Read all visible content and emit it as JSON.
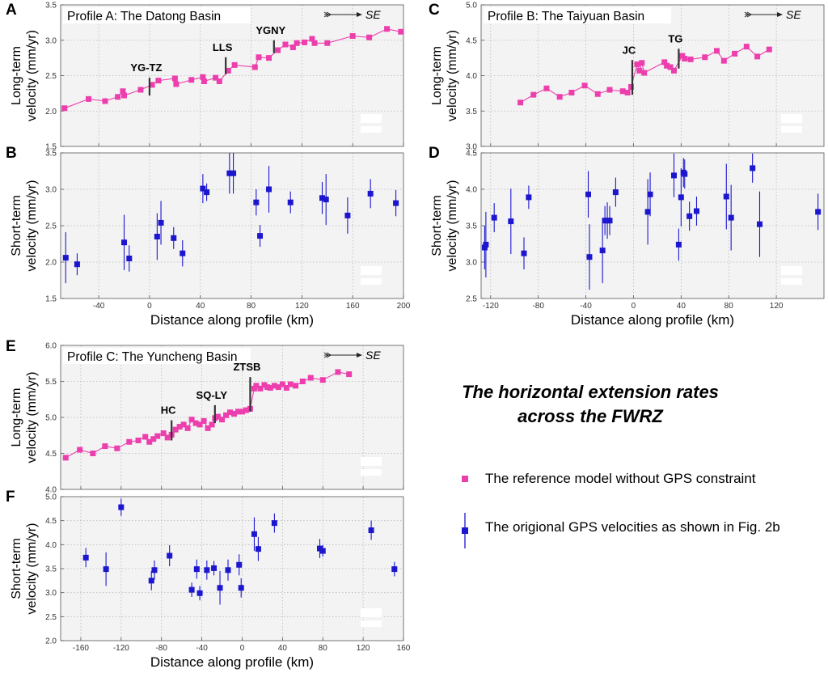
{
  "colors": {
    "reference": "#ec3fad",
    "gps": "#1c17cf",
    "panel_bg": "#f3f3f3",
    "axis": "#555555",
    "grid": "#b8b8b8"
  },
  "legend": {
    "title_line1": "The horizontal extension rates",
    "title_line2": "across the FWRZ",
    "reference_label": "The reference model without GPS constraint",
    "gps_label": "The origional GPS velocities as shown in Fig. 2b"
  },
  "panel_letters": {
    "A": "A",
    "B": "B",
    "C": "C",
    "D": "D",
    "E": "E",
    "F": "F"
  },
  "chart_data": [
    {
      "id": "A",
      "type": "line",
      "title": "Profile A: The Datong Basin",
      "direction": "SE",
      "ylabel": [
        "Long-term",
        "velocity (mm/yr)"
      ],
      "xlabel": "",
      "xlim": [
        -70,
        200
      ],
      "ylim": [
        1.5,
        3.5
      ],
      "xticks": [
        -40,
        0,
        40,
        80,
        120,
        160,
        200
      ],
      "yticks": [
        1.5,
        2.0,
        2.5,
        3.0,
        3.5
      ],
      "show_xtick_labels": false,
      "series": [
        {
          "name": "The reference model without GPS constraint",
          "x": [
            -67,
            -48,
            -35,
            -25,
            -21,
            -20,
            -7,
            2,
            7,
            20,
            21,
            33,
            42,
            43,
            52,
            55,
            62,
            67,
            83,
            86,
            94,
            101,
            107,
            113,
            116,
            122,
            128,
            130,
            140,
            160,
            173,
            187,
            198
          ],
          "y": [
            2.04,
            2.17,
            2.14,
            2.2,
            2.28,
            2.22,
            2.3,
            2.37,
            2.43,
            2.46,
            2.38,
            2.44,
            2.48,
            2.42,
            2.47,
            2.42,
            2.57,
            2.65,
            2.62,
            2.76,
            2.75,
            2.86,
            2.94,
            2.9,
            2.96,
            2.97,
            3.02,
            2.96,
            2.96,
            3.06,
            3.04,
            3.16,
            3.12
          ]
        }
      ],
      "markers": [
        {
          "label": "YG-TZ",
          "x": 0,
          "y0": 2.22,
          "y1": 2.47
        },
        {
          "label": "LLS",
          "x": 60,
          "y0": 2.52,
          "y1": 2.76
        },
        {
          "label": "YGNY",
          "x": 98,
          "y0": 2.82,
          "y1": 3.0
        }
      ]
    },
    {
      "id": "B",
      "type": "scatter",
      "title": "",
      "ylabel": [
        "Short-term",
        "velocity (mm/yr)"
      ],
      "xlabel": "Distance along profile (km)",
      "xlim": [
        -70,
        200
      ],
      "ylim": [
        1.5,
        3.5
      ],
      "xticks": [
        -40,
        0,
        40,
        80,
        120,
        160,
        200
      ],
      "yticks": [
        1.5,
        2.0,
        2.5,
        3.0,
        3.5
      ],
      "show_xtick_labels": true,
      "series": [
        {
          "name": "The origional GPS velocities as shown in Fig. 2b",
          "x": [
            -66,
            -57,
            -20,
            -16,
            6,
            9,
            19,
            26,
            42,
            45,
            63,
            66,
            84,
            87,
            94,
            111,
            136,
            139,
            156,
            174,
            194
          ],
          "y": [
            2.06,
            1.97,
            2.27,
            2.05,
            2.35,
            2.54,
            2.33,
            2.12,
            3.01,
            2.96,
            3.22,
            3.22,
            2.82,
            2.36,
            3.0,
            2.82,
            2.88,
            2.86,
            2.64,
            2.94,
            2.81
          ],
          "err": [
            0.35,
            0.15,
            0.38,
            0.18,
            0.32,
            0.3,
            0.15,
            0.18,
            0.2,
            0.12,
            0.28,
            0.28,
            0.18,
            0.15,
            0.32,
            0.15,
            0.22,
            0.35,
            0.25,
            0.2,
            0.18
          ]
        }
      ]
    },
    {
      "id": "C",
      "type": "line",
      "title": "Profile B: The Taiyuan Basin",
      "direction": "SE",
      "ylabel": [
        "Long-term",
        "velocity (mm/yr)"
      ],
      "xlabel": "",
      "xlim": [
        -128,
        160
      ],
      "ylim": [
        3.0,
        5.0
      ],
      "xticks": [
        -120,
        -80,
        -40,
        0,
        40,
        80,
        120
      ],
      "yticks": [
        3.0,
        3.5,
        4.0,
        4.5,
        5.0
      ],
      "show_xtick_labels": false,
      "series": [
        {
          "name": "The reference model without GPS constraint",
          "x": [
            -95,
            -84,
            -73,
            -62,
            -52,
            -41,
            -30,
            -20,
            -9,
            -5,
            -2,
            3,
            5,
            7,
            9,
            26,
            28,
            31,
            34,
            41,
            43,
            48,
            60,
            70,
            76,
            85,
            95,
            104,
            114
          ],
          "y": [
            3.62,
            3.73,
            3.82,
            3.7,
            3.76,
            3.86,
            3.74,
            3.8,
            3.78,
            3.76,
            3.84,
            4.16,
            4.07,
            4.18,
            4.04,
            4.19,
            4.14,
            4.12,
            4.07,
            4.28,
            4.24,
            4.23,
            4.26,
            4.35,
            4.21,
            4.31,
            4.41,
            4.27,
            4.37
          ]
        }
      ],
      "markers": [
        {
          "label": "JC",
          "x": -1,
          "y0": 3.73,
          "y1": 4.22
        },
        {
          "label": "TG",
          "x": 38,
          "y0": 4.1,
          "y1": 4.38
        }
      ]
    },
    {
      "id": "D",
      "type": "scatter",
      "title": "",
      "ylabel": [
        "Short-term",
        "velocity (mm/yr)"
      ],
      "xlabel": "Distance along profile (km)",
      "xlim": [
        -128,
        160
      ],
      "ylim": [
        2.5,
        4.5
      ],
      "xticks": [
        -120,
        -80,
        -40,
        0,
        40,
        80,
        120
      ],
      "yticks": [
        2.5,
        3.0,
        3.5,
        4.0,
        4.5
      ],
      "show_xtick_labels": true,
      "series": [
        {
          "name": "The origional GPS velocities as shown in Fig. 2b",
          "x": [
            -125,
            -124,
            -117,
            -103,
            -92,
            -88,
            -38,
            -37,
            -26,
            -24,
            -22,
            -20,
            -15,
            12,
            14,
            34,
            38,
            40,
            42,
            43,
            47,
            53,
            78,
            82,
            100,
            106,
            155
          ],
          "y": [
            3.2,
            3.24,
            3.61,
            3.56,
            3.12,
            3.89,
            3.93,
            3.07,
            3.16,
            3.57,
            3.57,
            3.57,
            3.96,
            3.69,
            3.93,
            4.19,
            3.24,
            3.89,
            4.23,
            4.21,
            3.63,
            3.7,
            3.9,
            3.61,
            4.29,
            3.52,
            3.69
          ],
          "err": [
            0.3,
            0.45,
            0.2,
            0.45,
            0.22,
            0.16,
            0.32,
            0.45,
            0.45,
            0.2,
            0.25,
            0.2,
            0.2,
            0.45,
            0.3,
            0.3,
            0.22,
            0.4,
            0.2,
            0.2,
            0.2,
            0.2,
            0.45,
            0.45,
            0.2,
            0.45,
            0.25
          ]
        }
      ]
    },
    {
      "id": "E",
      "type": "line",
      "title": "Profile C: The Yuncheng Basin",
      "direction": "SE",
      "ylabel": [
        "Long-term",
        "velocity (mm/yr)"
      ],
      "xlabel": "",
      "xlim": [
        -180,
        160
      ],
      "ylim": [
        4.0,
        6.0
      ],
      "xticks": [
        -160,
        -120,
        -80,
        -40,
        0,
        40,
        80,
        120,
        160
      ],
      "yticks": [
        4.0,
        4.5,
        5.0,
        5.5,
        6.0
      ],
      "show_xtick_labels": false,
      "series": [
        {
          "name": "The reference model without GPS constraint",
          "x": [
            -175,
            -161,
            -148,
            -136,
            -124,
            -112,
            -103,
            -96,
            -92,
            -88,
            -84,
            -78,
            -74,
            -70,
            -66,
            -62,
            -58,
            -54,
            -50,
            -46,
            -42,
            -38,
            -34,
            -30,
            -27,
            -24,
            -20,
            -16,
            -12,
            -8,
            -4,
            0,
            4,
            8,
            12,
            14,
            18,
            22,
            25,
            28,
            32,
            36,
            40,
            44,
            48,
            53,
            60,
            68,
            80,
            95,
            106
          ],
          "y": [
            4.44,
            4.55,
            4.5,
            4.6,
            4.57,
            4.66,
            4.68,
            4.73,
            4.66,
            4.7,
            4.74,
            4.78,
            4.72,
            4.76,
            4.83,
            4.87,
            4.9,
            4.85,
            4.97,
            4.92,
            4.9,
            4.95,
            4.85,
            4.9,
            4.99,
            5.01,
            4.97,
            5.03,
            5.07,
            5.05,
            5.08,
            5.08,
            5.1,
            5.12,
            5.4,
            5.44,
            5.4,
            5.45,
            5.42,
            5.41,
            5.44,
            5.42,
            5.46,
            5.41,
            5.46,
            5.44,
            5.5,
            5.55,
            5.52,
            5.63,
            5.6
          ]
        }
      ],
      "markers": [
        {
          "label": "HC",
          "x": -70,
          "y0": 4.68,
          "y1": 4.96
        },
        {
          "label": "SQ-LY",
          "x": -27,
          "y0": 4.92,
          "y1": 5.17
        },
        {
          "label": "ZTSB",
          "x": 8,
          "y0": 5.08,
          "y1": 5.56
        }
      ]
    },
    {
      "id": "F",
      "type": "scatter",
      "title": "",
      "ylabel": [
        "Short-term",
        "velocity (mm/yr)"
      ],
      "xlabel": "Distance along profile (km)",
      "xlim": [
        -180,
        160
      ],
      "ylim": [
        2.0,
        5.0
      ],
      "xticks": [
        -160,
        -120,
        -80,
        -40,
        0,
        40,
        80,
        120,
        160
      ],
      "yticks": [
        2.0,
        2.5,
        3.0,
        3.5,
        4.0,
        4.5,
        5.0
      ],
      "show_xtick_labels": true,
      "series": [
        {
          "name": "The origional GPS velocities as shown in Fig. 2b",
          "x": [
            -155,
            -135,
            -120,
            -90,
            -87,
            -72,
            -50,
            -45,
            -42,
            -35,
            -28,
            -22,
            -14,
            -3,
            -1,
            12,
            16,
            32,
            77,
            80,
            128,
            151
          ],
          "y": [
            3.73,
            3.49,
            4.78,
            3.25,
            3.47,
            3.77,
            3.06,
            3.49,
            2.99,
            3.47,
            3.51,
            3.1,
            3.47,
            3.58,
            3.1,
            4.22,
            3.91,
            4.45,
            3.92,
            3.87,
            4.3,
            3.49
          ],
          "err": [
            0.2,
            0.35,
            0.18,
            0.2,
            0.2,
            0.22,
            0.15,
            0.2,
            0.15,
            0.2,
            0.15,
            0.35,
            0.22,
            0.22,
            0.2,
            0.35,
            0.25,
            0.2,
            0.2,
            0.12,
            0.2,
            0.15
          ]
        }
      ]
    }
  ]
}
